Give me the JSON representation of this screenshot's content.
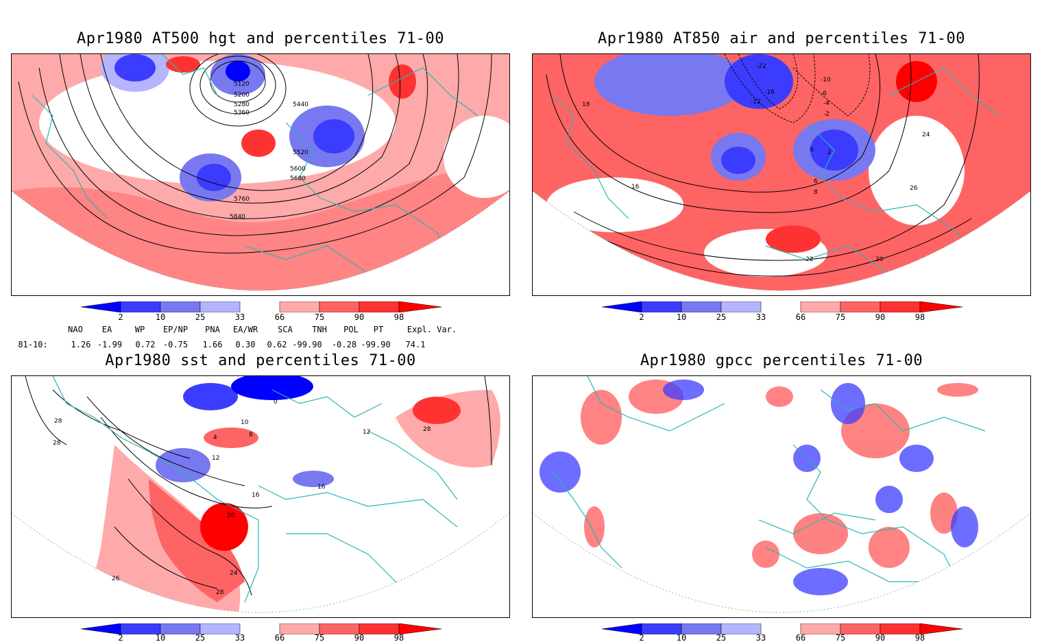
{
  "panels": [
    {
      "id": "p1",
      "title": "Apr1980 AT500 hgt and percentiles 71-00",
      "contour_labels": [
        "5120",
        "5200",
        "5280",
        "5360",
        "5440",
        "5520",
        "5600",
        "5680",
        "5760",
        "5840"
      ]
    },
    {
      "id": "p2",
      "title": "Apr1980 AT850 air and percentiles 71-00",
      "contour_labels": [
        "-22",
        "-16",
        "-12",
        "-10",
        "-6",
        "-4",
        "-2",
        "0",
        "2",
        "6",
        "8",
        "16",
        "18",
        "24",
        "26",
        "20",
        "22"
      ]
    },
    {
      "id": "p3",
      "title": "Apr1980 sst and percentiles 71-00",
      "contour_labels": [
        "28",
        "28",
        "26",
        "0",
        "4",
        "8",
        "10",
        "12",
        "16",
        "20",
        "24",
        "28",
        "16",
        "12",
        "28"
      ]
    },
    {
      "id": "p4",
      "title": "Apr1980 gpcc percentiles 71-00",
      "contour_labels": []
    }
  ],
  "colorbar": {
    "labels": [
      "2",
      "10",
      "25",
      "33",
      "66",
      "75",
      "90",
      "98"
    ],
    "colors": {
      "deep_blue": "#0000ff",
      "blue": "#3c3cff",
      "mid_blue": "#7878f0",
      "light_blue": "#b4b4ff",
      "light_red": "#ffaaaa",
      "mid_red": "#ff6464",
      "red": "#ff3232",
      "deep_red": "#ff0000"
    }
  },
  "indices": {
    "headers": [
      "NAO",
      "EA",
      "WP",
      "EP/NP",
      "PNA",
      "EA/WR",
      "SCA",
      "TNH",
      "POL",
      "PT",
      "Expl. Var."
    ],
    "row_label": "81-10:",
    "values": [
      "1.26",
      "-1.99",
      "0.72",
      "-0.75",
      "1.66",
      "0.30",
      "0.62",
      "-99.90",
      "-0.28",
      "-99.90",
      "74.1"
    ]
  },
  "colors": {
    "coast": "#2ab5b5",
    "contour": "#000000",
    "grid": "#999999"
  }
}
